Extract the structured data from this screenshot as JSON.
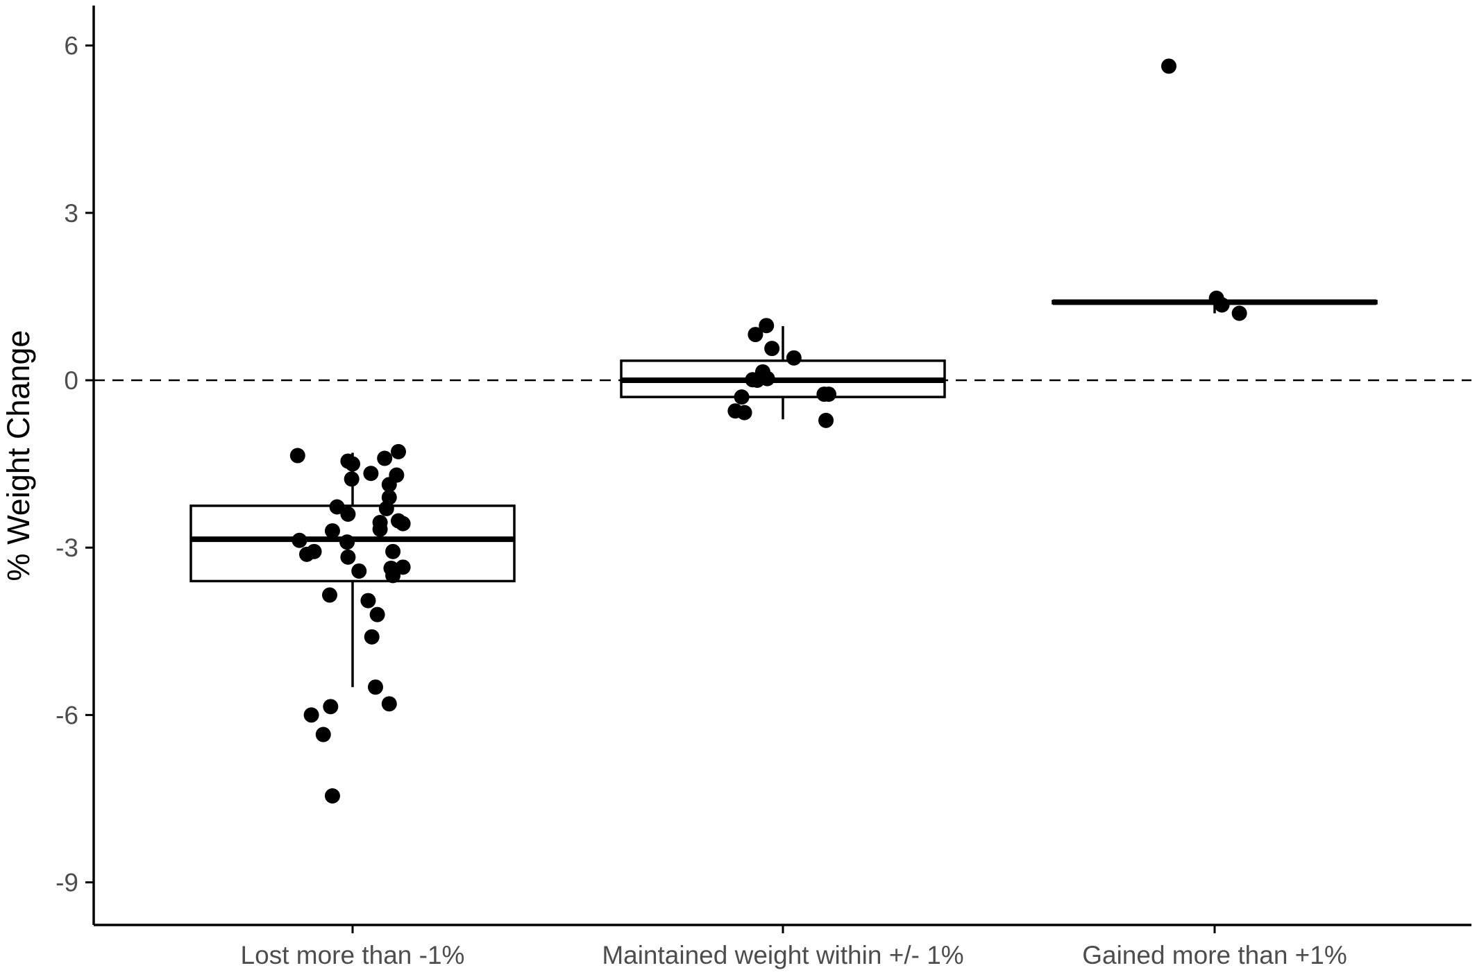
{
  "chart_data": {
    "type": "box",
    "title": "",
    "xlabel": "",
    "ylabel": "% Weight Change",
    "ylim": [
      -10,
      9
    ],
    "yticks": [
      -9,
      -6,
      -3,
      0,
      3,
      6
    ],
    "ytick_labels": [
      "-9",
      "-6",
      "-3",
      "0",
      "3",
      "6"
    ],
    "reference_line": {
      "y": 0,
      "style": "dashed"
    },
    "grid": false,
    "legend": "none",
    "categories": [
      "Lost more than -1%",
      "Maintained weight within +/- 1%",
      "Gained more than +1%"
    ],
    "boxes": [
      {
        "category": "Lost more than -1%",
        "whisker_low": -5.5,
        "q1": -3.6,
        "median": -2.85,
        "q3": -2.25,
        "whisker_high": -1.3
      },
      {
        "category": "Maintained weight within +/- 1%",
        "whisker_low": -0.7,
        "q1": -0.3,
        "median": 0.0,
        "q3": 0.35,
        "whisker_high": 0.97
      },
      {
        "category": "Gained more than +1%",
        "whisker_low": 1.2,
        "q1": 1.38,
        "median": 1.4,
        "q3": 1.42,
        "whisker_high": 1.45
      }
    ],
    "points": [
      [
        [
          -0.6,
          -1.35
        ],
        [
          -0.05,
          -1.45
        ],
        [
          -0.0,
          -1.5
        ],
        [
          0.35,
          -1.4
        ],
        [
          0.5,
          -1.28
        ],
        [
          0.2,
          -1.67
        ],
        [
          0.48,
          -1.7
        ],
        [
          -0.01,
          -1.77
        ],
        [
          0.4,
          -1.87
        ],
        [
          0.4,
          -2.1
        ],
        [
          -0.17,
          -2.27
        ],
        [
          0.37,
          -2.3
        ],
        [
          -0.05,
          -2.4
        ],
        [
          0.3,
          -2.55
        ],
        [
          0.5,
          -2.52
        ],
        [
          0.55,
          -2.57
        ],
        [
          -0.22,
          -2.7
        ],
        [
          0.3,
          -2.67
        ],
        [
          -0.58,
          -2.87
        ],
        [
          -0.06,
          -2.9
        ],
        [
          -0.5,
          -3.12
        ],
        [
          -0.42,
          -3.07
        ],
        [
          0.44,
          -3.07
        ],
        [
          -0.05,
          -3.17
        ],
        [
          0.07,
          -3.42
        ],
        [
          0.42,
          -3.37
        ],
        [
          0.55,
          -3.35
        ],
        [
          0.44,
          -3.5
        ],
        [
          -0.25,
          -3.85
        ],
        [
          0.17,
          -3.95
        ],
        [
          0.27,
          -4.2
        ],
        [
          0.21,
          -4.6
        ],
        [
          0.25,
          -5.5
        ],
        [
          0.4,
          -5.8
        ],
        [
          -0.45,
          -6.0
        ],
        [
          -0.24,
          -5.85
        ],
        [
          -0.32,
          -6.35
        ],
        [
          -0.22,
          -7.45
        ]
      ],
      [
        [
          -0.3,
          0.82
        ],
        [
          -0.18,
          0.98
        ],
        [
          -0.12,
          0.57
        ],
        [
          0.12,
          0.4
        ],
        [
          -0.22,
          0.15
        ],
        [
          -0.17,
          0.03
        ],
        [
          -0.33,
          0.01
        ],
        [
          -0.28,
          0.0
        ],
        [
          -0.45,
          -0.3
        ],
        [
          -0.52,
          -0.55
        ],
        [
          -0.42,
          -0.58
        ],
        [
          0.45,
          -0.25
        ],
        [
          0.5,
          -0.25
        ],
        [
          0.47,
          -0.72
        ]
      ],
      [
        [
          -0.5,
          5.63
        ],
        [
          0.02,
          1.47
        ],
        [
          0.08,
          1.35
        ],
        [
          0.27,
          1.2
        ]
      ]
    ]
  }
}
